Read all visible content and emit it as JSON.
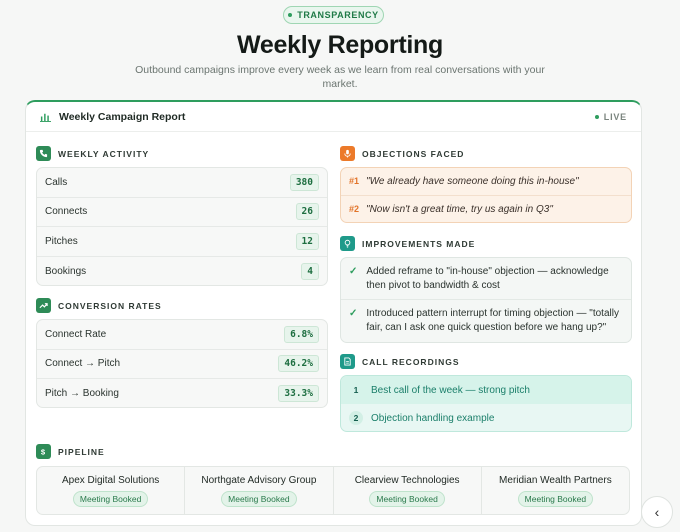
{
  "badge": "TRANSPARENCY",
  "title": "Weekly Reporting",
  "subtitle": "Outbound campaigns improve every week as we learn from real conversations with your market.",
  "card": {
    "title": "Weekly Campaign Report",
    "status": "LIVE"
  },
  "weekly_activity": {
    "label": "WEEKLY ACTIVITY",
    "rows": [
      {
        "label": "Calls",
        "value": "380"
      },
      {
        "label": "Connects",
        "value": "26"
      },
      {
        "label": "Pitches",
        "value": "12"
      },
      {
        "label": "Bookings",
        "value": "4"
      }
    ]
  },
  "conversion_rates": {
    "label": "CONVERSION RATES",
    "rows": [
      {
        "label": "Connect Rate",
        "value": "6.8%"
      },
      {
        "label": "Connect → Pitch",
        "value": "46.2%"
      },
      {
        "label": "Pitch → Booking",
        "value": "33.3%"
      }
    ]
  },
  "objections": {
    "label": "OBJECTIONS FACED",
    "items": [
      {
        "num": "#1",
        "text": "\"We already have someone doing this in-house\""
      },
      {
        "num": "#2",
        "text": "\"Now isn't a great time, try us again in Q3\""
      }
    ]
  },
  "improvements": {
    "label": "IMPROVEMENTS MADE",
    "items": [
      {
        "text": "Added reframe to \"in-house\" objection — acknowledge then pivot to bandwidth & cost"
      },
      {
        "text": "Introduced pattern interrupt for timing objection — \"totally fair, can I ask one quick question before we hang up?\""
      }
    ]
  },
  "recordings": {
    "label": "CALL RECORDINGS",
    "items": [
      {
        "num": "1",
        "text": "Best call of the week — strong pitch"
      },
      {
        "num": "2",
        "text": "Objection handling example"
      }
    ]
  },
  "pipeline": {
    "label": "PIPELINE",
    "items": [
      {
        "name": "Apex Digital Solutions",
        "status": "Meeting Booked"
      },
      {
        "name": "Northgate Advisory Group",
        "status": "Meeting Booked"
      },
      {
        "name": "Clearview Technologies",
        "status": "Meeting Booked"
      },
      {
        "name": "Meridian Wealth Partners",
        "status": "Meeting Booked"
      }
    ]
  },
  "colors": {
    "accent": "#2e9d5e",
    "orange": "#ec7a2a",
    "teal": "#1f9a8a"
  },
  "icons": {
    "back": "chevron-left-icon"
  }
}
